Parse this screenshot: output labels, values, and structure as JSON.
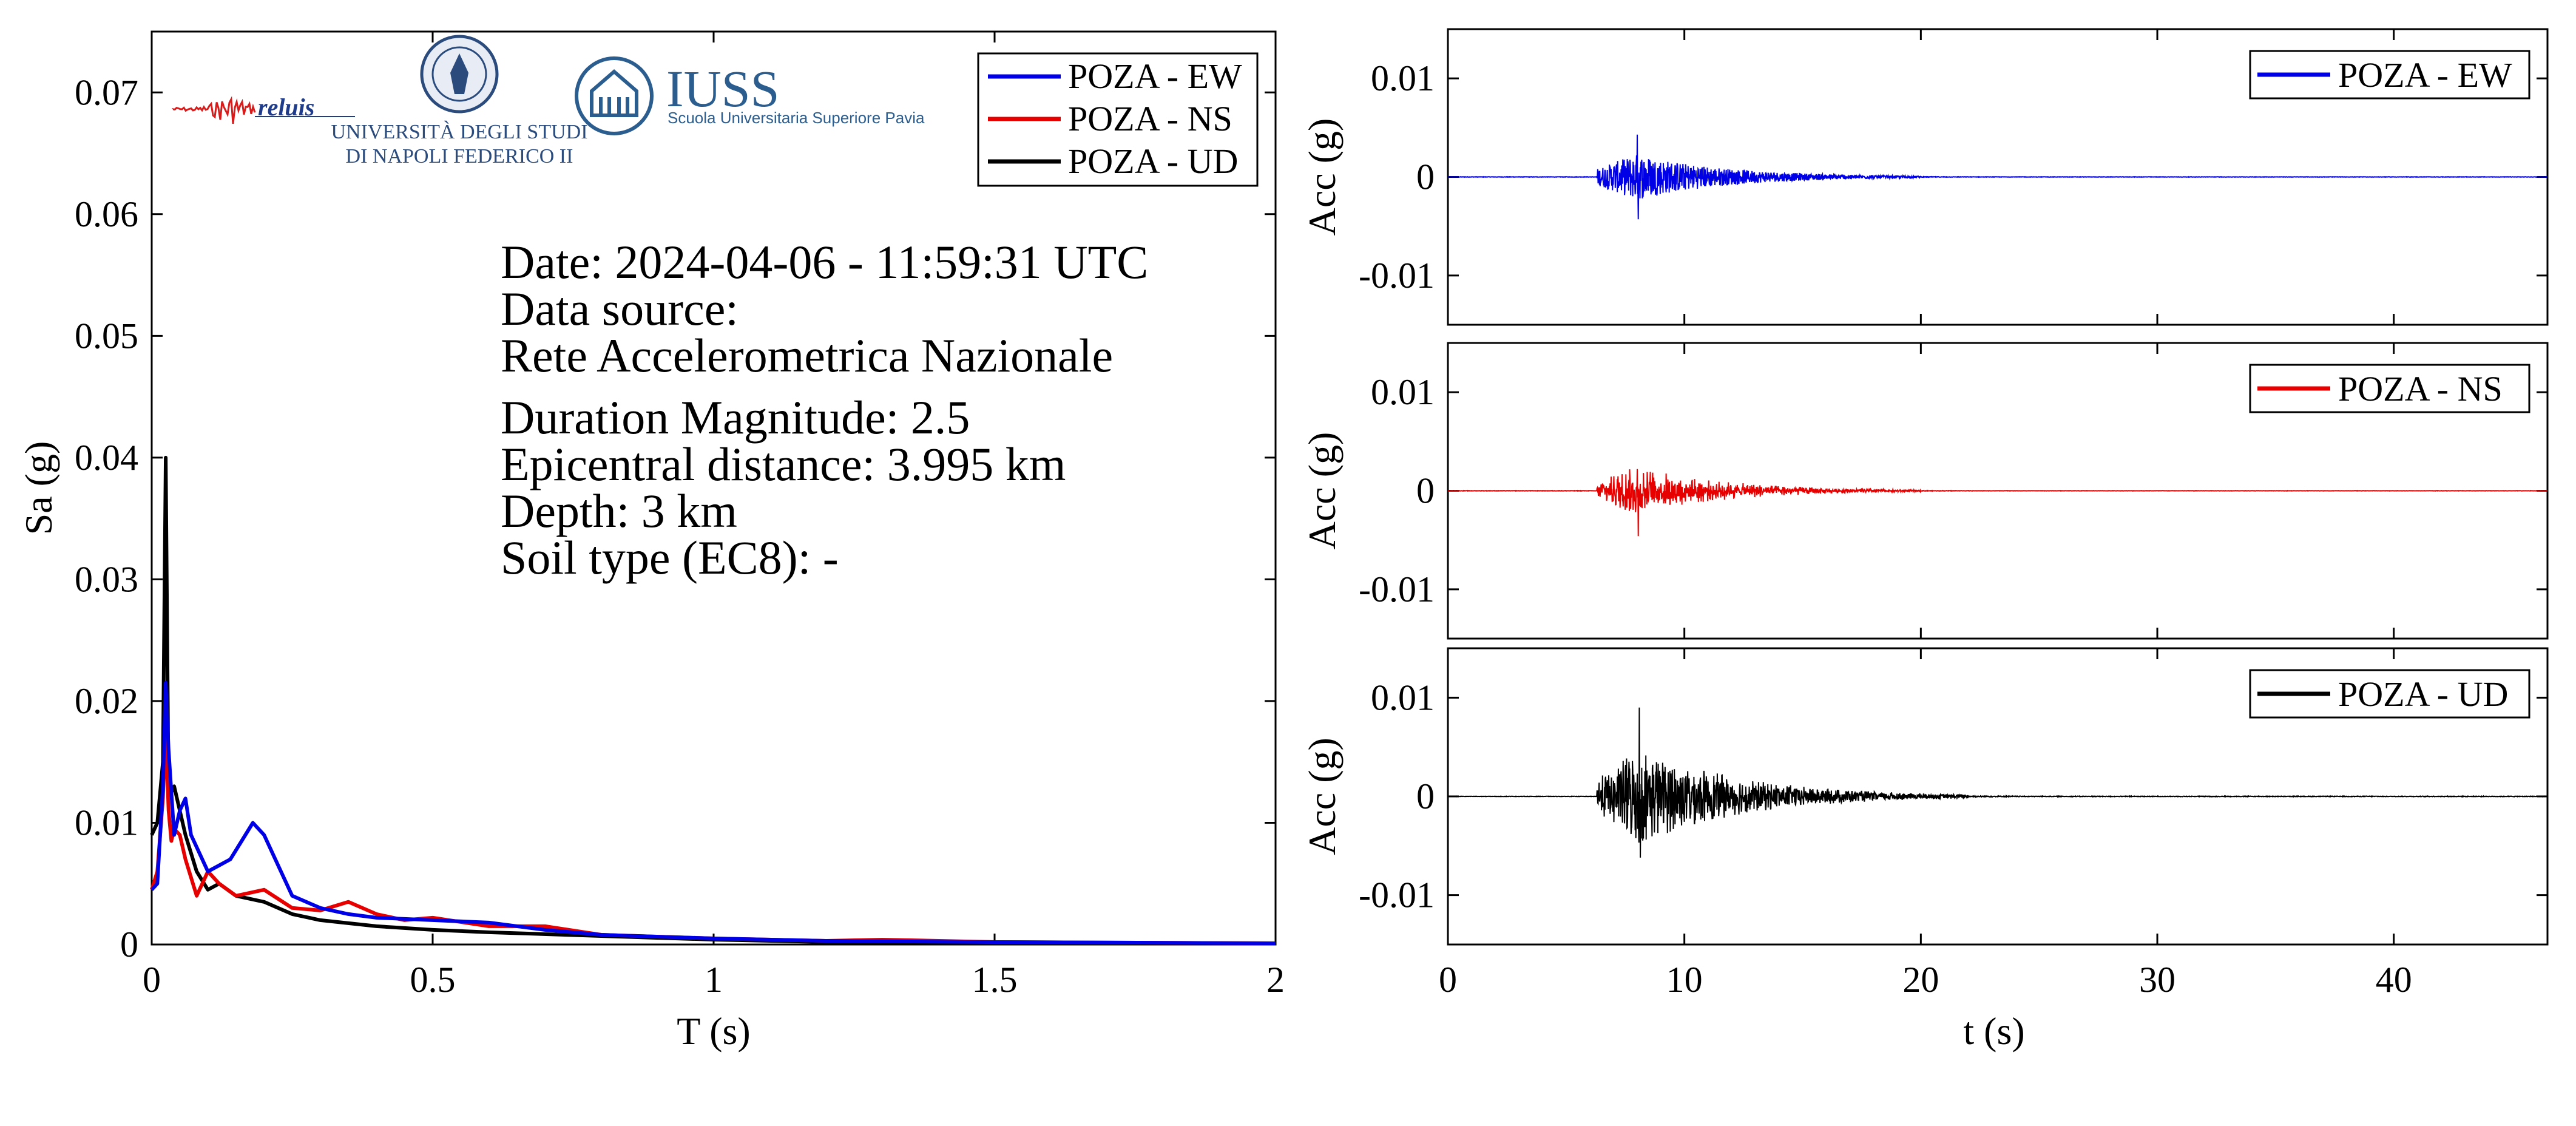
{
  "info_box": {
    "date": "Date: 2024-04-06 - 11:59:31 UTC",
    "source_label": "Data source:",
    "source": "Rete Accelerometrica Nazionale",
    "magnitude": "Duration Magnitude: 2.5",
    "distance": "Epicentral distance: 3.995 km",
    "depth": "Depth: 3 km",
    "soil": "Soil type (EC8): -"
  },
  "logos": {
    "reluis": "reluis",
    "unina_line1": "UNIVERSITÀ DEGLI STUDI",
    "unina_line2": "DI NAPOLI FEDERICO II",
    "iuss_main": "IUSS",
    "iuss_sub": "Scuola Universitaria Superiore Pavia"
  },
  "colors": {
    "EW": "#0000e6",
    "NS": "#e60000",
    "UD": "#000000"
  },
  "chart_data": [
    {
      "type": "line",
      "xlabel": "T (s)",
      "ylabel": "Sa (g)",
      "xlim": [
        0,
        2
      ],
      "ylim": [
        0,
        0.075
      ],
      "xticks": [
        0,
        0.5,
        1,
        1.5,
        2
      ],
      "xtick_labels": [
        "0",
        "0.5",
        "1",
        "1.5",
        "2"
      ],
      "yticks": [
        0,
        0.01,
        0.02,
        0.03,
        0.04,
        0.05,
        0.06,
        0.07
      ],
      "ytick_labels": [
        "0",
        "0.01",
        "0.02",
        "0.03",
        "0.04",
        "0.05",
        "0.06",
        "0.07"
      ],
      "legend_position": "top-right",
      "series": [
        {
          "name": "POZA - EW",
          "color": "#0000e6",
          "x": [
            0,
            0.01,
            0.02,
            0.025,
            0.03,
            0.04,
            0.05,
            0.06,
            0.07,
            0.08,
            0.1,
            0.12,
            0.14,
            0.16,
            0.18,
            0.2,
            0.22,
            0.25,
            0.3,
            0.35,
            0.4,
            0.5,
            0.6,
            0.7,
            0.8,
            1.0,
            1.2,
            1.5,
            2.0
          ],
          "y": [
            0.0045,
            0.005,
            0.013,
            0.0215,
            0.016,
            0.009,
            0.011,
            0.012,
            0.009,
            0.008,
            0.006,
            0.0065,
            0.007,
            0.0085,
            0.01,
            0.009,
            0.007,
            0.004,
            0.003,
            0.0025,
            0.0022,
            0.002,
            0.0018,
            0.0012,
            0.0008,
            0.0005,
            0.0003,
            0.0002,
            0.0001
          ]
        },
        {
          "name": "POZA - NS",
          "color": "#e60000",
          "x": [
            0,
            0.01,
            0.02,
            0.025,
            0.03,
            0.035,
            0.04,
            0.05,
            0.06,
            0.08,
            0.1,
            0.12,
            0.15,
            0.2,
            0.25,
            0.3,
            0.35,
            0.4,
            0.45,
            0.5,
            0.6,
            0.7,
            0.8,
            1.0,
            1.2,
            1.3,
            1.5,
            2.0
          ],
          "y": [
            0.0045,
            0.006,
            0.012,
            0.0175,
            0.011,
            0.0085,
            0.0095,
            0.009,
            0.007,
            0.004,
            0.006,
            0.005,
            0.004,
            0.0045,
            0.003,
            0.0028,
            0.0035,
            0.0025,
            0.002,
            0.0022,
            0.0015,
            0.0015,
            0.0008,
            0.0005,
            0.0003,
            0.0004,
            0.0002,
            0.0001
          ]
        },
        {
          "name": "POZA - UD",
          "color": "#000000",
          "x": [
            0,
            0.01,
            0.02,
            0.025,
            0.03,
            0.04,
            0.05,
            0.06,
            0.08,
            0.1,
            0.12,
            0.15,
            0.2,
            0.25,
            0.3,
            0.4,
            0.5,
            0.6,
            0.8,
            1.0,
            1.2,
            1.5,
            2.0
          ],
          "y": [
            0.009,
            0.01,
            0.015,
            0.04,
            0.012,
            0.013,
            0.011,
            0.009,
            0.006,
            0.0045,
            0.005,
            0.004,
            0.0035,
            0.0025,
            0.002,
            0.0015,
            0.0012,
            0.001,
            0.0007,
            0.0004,
            0.0002,
            0.0001,
            0.0001
          ]
        }
      ]
    },
    {
      "type": "line",
      "ylabel": "Acc (g)",
      "xlim": [
        0,
        46.5
      ],
      "ylim": [
        -0.015,
        0.015
      ],
      "yticks": [
        -0.01,
        0,
        0.01
      ],
      "ytick_labels": [
        "-0.01",
        "0",
        "0.01"
      ],
      "legend_position": "top-right",
      "series": [
        {
          "name": "POZA - EW",
          "color": "#0000e6",
          "onset_s": 6.3,
          "peak_time_s": 8.0,
          "peak_g": 0.0043,
          "min_g": -0.0043,
          "coda_end_s": 20
        }
      ]
    },
    {
      "type": "line",
      "ylabel": "Acc (g)",
      "xlim": [
        0,
        46.5
      ],
      "ylim": [
        -0.015,
        0.015
      ],
      "yticks": [
        -0.01,
        0,
        0.01
      ],
      "ytick_labels": [
        "-0.01",
        "0",
        "0.01"
      ],
      "legend_position": "top-right",
      "series": [
        {
          "name": "POZA - NS",
          "color": "#e60000",
          "onset_s": 6.3,
          "peak_time_s": 8.0,
          "peak_g": 0.0022,
          "min_g": -0.0046,
          "coda_end_s": 20
        }
      ]
    },
    {
      "type": "line",
      "xlabel": "t (s)",
      "ylabel": "Acc (g)",
      "xlim": [
        0,
        46.5
      ],
      "ylim": [
        -0.015,
        0.015
      ],
      "xticks": [
        0,
        10,
        20,
        30,
        40
      ],
      "xtick_labels": [
        "0",
        "10",
        "20",
        "30",
        "40"
      ],
      "yticks": [
        -0.01,
        0,
        0.01
      ],
      "ytick_labels": [
        "-0.01",
        "0",
        "0.01"
      ],
      "legend_position": "top-right",
      "series": [
        {
          "name": "POZA - UD",
          "color": "#000000",
          "onset_s": 6.3,
          "peak_time_s": 8.1,
          "peak_g": 0.009,
          "min_g": -0.0062,
          "coda_end_s": 22
        }
      ]
    }
  ]
}
